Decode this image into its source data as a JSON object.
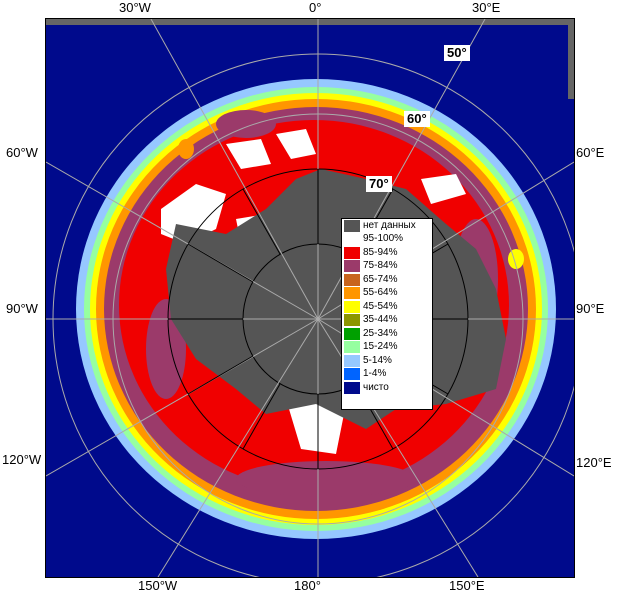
{
  "map": {
    "edge_labels": {
      "top": [
        "30°W",
        "0°",
        "30°E"
      ],
      "left": [
        "60°W",
        "90°W",
        "120°W"
      ],
      "right": [
        "60°E",
        "90°E",
        "120°E"
      ],
      "bottom": [
        "150°W",
        "180°",
        "150°E"
      ]
    },
    "latitude_labels": [
      "50°",
      "60°",
      "70°"
    ],
    "colors": {
      "ocean": "#000a8c",
      "land": "#555555",
      "frame_gray": "#666666"
    }
  },
  "legend": {
    "items": [
      {
        "label": "нет данных",
        "color": "#555555"
      },
      {
        "label": "95-100%",
        "color": "#ffffff"
      },
      {
        "label": "85-94%",
        "color": "#f00000"
      },
      {
        "label": "75-84%",
        "color": "#9b3a6a"
      },
      {
        "label": "65-74%",
        "color": "#c8641e"
      },
      {
        "label": "55-64%",
        "color": "#ff9600"
      },
      {
        "label": "45-54%",
        "color": "#ffff00"
      },
      {
        "label": "35-44%",
        "color": "#8c9600"
      },
      {
        "label": "25-34%",
        "color": "#00a000"
      },
      {
        "label": "15-24%",
        "color": "#96ffa0"
      },
      {
        "label": "5-14%",
        "color": "#96c8ff"
      },
      {
        "label": "1-4%",
        "color": "#0064ff"
      },
      {
        "label": "чисто",
        "color": "#000a8c"
      }
    ]
  }
}
